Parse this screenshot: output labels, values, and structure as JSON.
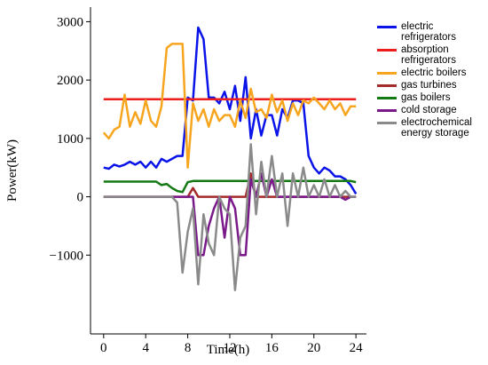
{
  "chart_data": {
    "type": "line",
    "xlabel": "Time(h)",
    "ylabel": "Power(kW)",
    "x": [
      0,
      0.5,
      1,
      1.5,
      2,
      2.5,
      3,
      3.5,
      4,
      4.5,
      5,
      5.5,
      6,
      6.5,
      7,
      7.5,
      8,
      8.5,
      9,
      9.5,
      10,
      10.5,
      11,
      11.5,
      12,
      12.5,
      13,
      13.5,
      14,
      14.5,
      15,
      15.5,
      16,
      16.5,
      17,
      17.5,
      18,
      18.5,
      19,
      19.5,
      20,
      20.5,
      21,
      21.5,
      22,
      22.5,
      23,
      23.5,
      24
    ],
    "xlim": [
      -1.25,
      25
    ],
    "xticks": [
      0,
      4,
      8,
      12,
      16,
      20,
      24
    ],
    "ylim": [
      -2350,
      3250
    ],
    "yticks": [
      {
        "value": -1000,
        "label": "−1000"
      },
      0,
      1000,
      2000,
      3000
    ],
    "series": [
      {
        "name": "electric refrigerators",
        "color": "#0a14e8",
        "values": [
          500,
          480,
          550,
          520,
          550,
          600,
          550,
          600,
          500,
          600,
          500,
          650,
          600,
          650,
          700,
          700,
          1700,
          1650,
          2900,
          2700,
          1700,
          1700,
          1600,
          1800,
          1500,
          1900,
          1300,
          2050,
          1000,
          1500,
          1050,
          1400,
          1400,
          1050,
          1500,
          1350,
          1650,
          1650,
          1600,
          700,
          500,
          400,
          500,
          450,
          350,
          350,
          300,
          200,
          50
        ]
      },
      {
        "name": "absorption refrigerators",
        "color": "#ee1c1c",
        "values": [
          1670,
          1670,
          1670,
          1670,
          1670,
          1670,
          1670,
          1670,
          1670,
          1670,
          1670,
          1670,
          1670,
          1670,
          1670,
          1670,
          1670,
          1670,
          1670,
          1670,
          1670,
          1670,
          1670,
          1670,
          1670,
          1670,
          1670,
          1670,
          1670,
          1670,
          1670,
          1670,
          1670,
          1670,
          1670,
          1670,
          1670,
          1670,
          1670,
          1670,
          1670,
          1670,
          1670,
          1670,
          1670,
          1670,
          1670,
          1670,
          1670
        ]
      },
      {
        "name": "electric boilers",
        "color": "#f7a51e",
        "values": [
          1100,
          1000,
          1150,
          1200,
          1750,
          1200,
          1450,
          1250,
          1650,
          1300,
          1200,
          1550,
          2550,
          2620,
          2620,
          2620,
          500,
          1600,
          1300,
          1500,
          1200,
          1500,
          1300,
          1400,
          1400,
          1200,
          1650,
          1350,
          1850,
          1450,
          1500,
          1350,
          1750,
          1450,
          1650,
          1300,
          1600,
          1400,
          1650,
          1600,
          1700,
          1600,
          1500,
          1650,
          1500,
          1600,
          1400,
          1550,
          1550
        ]
      },
      {
        "name": "gas turbines",
        "color": "#a52a2a",
        "values": [
          0,
          0,
          0,
          0,
          0,
          0,
          0,
          0,
          0,
          0,
          0,
          0,
          0,
          0,
          0,
          0,
          0,
          150,
          0,
          0,
          0,
          0,
          0,
          0,
          0,
          0,
          0,
          0,
          400,
          0,
          0,
          0,
          0,
          0,
          0,
          0,
          0,
          0,
          0,
          0,
          0,
          0,
          0,
          0,
          0,
          0,
          0,
          0,
          0
        ]
      },
      {
        "name": "gas boilers",
        "color": "#137a13",
        "values": [
          260,
          260,
          260,
          260,
          260,
          260,
          260,
          260,
          260,
          260,
          260,
          200,
          220,
          150,
          100,
          80,
          250,
          270,
          270,
          270,
          270,
          270,
          270,
          270,
          270,
          270,
          270,
          270,
          270,
          270,
          270,
          270,
          270,
          270,
          270,
          270,
          270,
          270,
          270,
          270,
          270,
          270,
          270,
          270,
          270,
          270,
          270,
          270,
          250
        ]
      },
      {
        "name": "cold storage",
        "color": "#7a1a8a",
        "values": [
          0,
          0,
          0,
          0,
          0,
          0,
          0,
          0,
          0,
          0,
          0,
          0,
          0,
          0,
          0,
          0,
          0,
          0,
          -1000,
          -1000,
          -500,
          -200,
          0,
          -700,
          0,
          -200,
          -1000,
          -1000,
          300,
          0,
          400,
          0,
          300,
          0,
          0,
          0,
          0,
          0,
          0,
          0,
          0,
          0,
          0,
          0,
          0,
          0,
          -50,
          0,
          0
        ]
      },
      {
        "name": "electrochemical energy storage",
        "color": "#8a8a8a",
        "values": [
          0,
          0,
          0,
          0,
          0,
          0,
          0,
          0,
          0,
          0,
          0,
          0,
          0,
          0,
          -100,
          -1300,
          -600,
          -200,
          -1500,
          -300,
          -800,
          -1000,
          0,
          -200,
          -300,
          -1600,
          -700,
          -500,
          900,
          -300,
          600,
          0,
          700,
          0,
          400,
          -500,
          400,
          0,
          500,
          0,
          200,
          0,
          300,
          0,
          200,
          0,
          100,
          0,
          0
        ]
      }
    ]
  }
}
